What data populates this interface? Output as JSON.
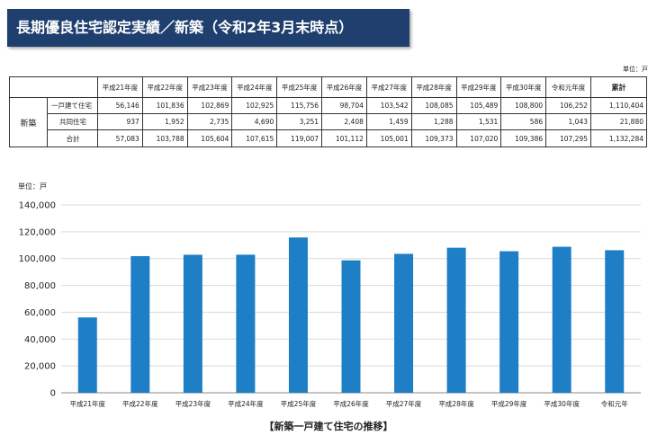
{
  "title": "長期優良住宅認定実績／新築（令和2年3月末時点）",
  "table": {
    "unit": "単位：戸",
    "columns": [
      "平成21年度",
      "平成22年度",
      "平成23年度",
      "平成24年度",
      "平成25年度",
      "平成26年度",
      "平成27年度",
      "平成28年度",
      "平成29年度",
      "平成30年度",
      "令和元年度",
      "累計"
    ],
    "group_label": "新築",
    "rows": [
      {
        "label": "一戸建て住宅",
        "values": [
          "56,146",
          "101,836",
          "102,869",
          "102,925",
          "115,756",
          "98,704",
          "103,542",
          "108,085",
          "105,489",
          "108,800",
          "106,252",
          "1,110,404"
        ]
      },
      {
        "label": "共同住宅",
        "values": [
          "937",
          "1,952",
          "2,735",
          "4,690",
          "3,251",
          "2,408",
          "1,459",
          "1,288",
          "1,531",
          "586",
          "1,043",
          "21,880"
        ]
      },
      {
        "label": "合計",
        "values": [
          "57,083",
          "103,788",
          "105,604",
          "107,615",
          "119,007",
          "101,112",
          "105,001",
          "109,373",
          "107,020",
          "109,386",
          "107,295",
          "1,132,284"
        ]
      }
    ]
  },
  "chart_data": {
    "type": "bar",
    "ylabel": "単位：戸",
    "categories": [
      "平成21年度",
      "平成22年度",
      "平成23年度",
      "平成24年度",
      "平成25年度",
      "平成26年度",
      "平成27年度",
      "平成28年度",
      "平成29年度",
      "平成30年度",
      "令和元年"
    ],
    "values": [
      56146,
      101836,
      102869,
      102925,
      115756,
      98704,
      103542,
      108085,
      105489,
      108800,
      106252
    ],
    "ylim": [
      0,
      140000
    ],
    "yticks": [
      0,
      20000,
      40000,
      60000,
      80000,
      100000,
      120000,
      140000
    ],
    "ytick_labels": [
      "0",
      "20,000",
      "40,000",
      "60,000",
      "80,000",
      "100,000",
      "120,000",
      "140,000"
    ],
    "grid": true,
    "bar_color": "#1f7fc6",
    "caption": "【新築一戸建て住宅の推移】"
  },
  "colors": {
    "title_bg": "#1f3f6e",
    "bar": "#1f7fc6"
  }
}
